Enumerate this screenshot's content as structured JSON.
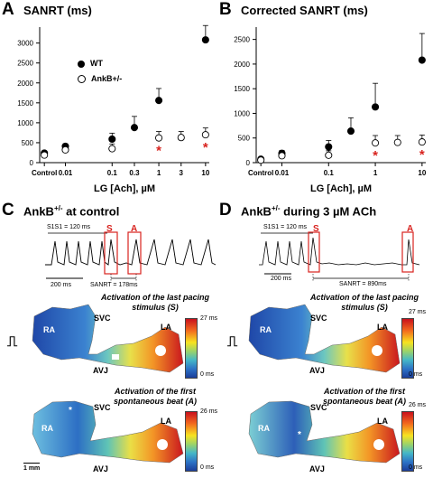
{
  "panel_a": {
    "label": "A",
    "title": "SANRT (ms)",
    "legend": {
      "wt": "WT",
      "ankb": "AnkB+/-"
    }
  },
  "panel_b": {
    "label": "B",
    "title": "Corrected SANRT (ms)"
  },
  "panel_c": {
    "label": "C",
    "title": "AnkB+/- at control",
    "s1s1": "S1S1 = 120 ms",
    "s_marker": "S",
    "a_marker": "A",
    "scale_time": "200 ms",
    "sanrt": "SANRT = 178ms",
    "map1_caption_1": "Activation of the last pacing",
    "map1_caption_2": "stimulus (S)",
    "map2_caption_1": "Activation of the first",
    "map2_caption_2": "spontaneous beat (A)",
    "map1_max": "27 ms",
    "map1_min": "0 ms",
    "map2_max": "26 ms",
    "map2_min": "0 ms",
    "scale_mm": "1 mm",
    "ra": "RA",
    "svc": "SVC",
    "la": "LA",
    "avj": "AVJ"
  },
  "panel_d": {
    "label": "D",
    "title": "AnkB+/- during 3 µM ACh",
    "s1s1": "S1S1 = 120 ms",
    "s_marker": "S",
    "a_marker": "A",
    "scale_time": "200 ms",
    "sanrt": "SANRT = 890ms",
    "map1_caption_1": "Activation of the last pacing",
    "map1_caption_2": "stimulus (S)",
    "map2_caption_1": "Activation of the first",
    "map2_caption_2": "spontaneous beat (A)",
    "map1_max": "27 ms",
    "map1_min": "0 ms",
    "map2_max": "26 ms",
    "map2_min": "0 ms",
    "ra": "RA",
    "svc": "SVC",
    "la": "LA",
    "avj": "AVJ"
  },
  "chart_data": [
    {
      "type": "scatter",
      "title": "SANRT (ms)",
      "xlabel": "LG [Ach], µM",
      "ylabel": "",
      "x_ticks": [
        "Control",
        "0.01",
        "0.1",
        "0.3",
        "1",
        "3",
        "10"
      ],
      "y_ticks": [
        0,
        500,
        1000,
        1500,
        2000,
        2500,
        3000
      ],
      "ylim": [
        0,
        3400
      ],
      "significance_marker": "*",
      "series": [
        {
          "name": "WT",
          "marker": "filled-circle",
          "points": [
            {
              "x": "Control",
              "y": 240,
              "err": 40
            },
            {
              "x": "0.01",
              "y": 410,
              "err": 60
            },
            {
              "x": "0.1",
              "y": 590,
              "err": 150
            },
            {
              "x": "0.3",
              "y": 880,
              "err": 280
            },
            {
              "x": "1",
              "y": 1560,
              "err": 300
            },
            {
              "x": "10",
              "y": 3080,
              "err": 360
            }
          ]
        },
        {
          "name": "AnkB+/-",
          "marker": "open-circle",
          "points": [
            {
              "x": "Control",
              "y": 190,
              "err": 50
            },
            {
              "x": "0.01",
              "y": 320,
              "err": 90
            },
            {
              "x": "0.1",
              "y": 350,
              "err": 120
            },
            {
              "x": "1",
              "y": 620,
              "err": 160,
              "sig": true
            },
            {
              "x": "3",
              "y": 630,
              "err": 150
            },
            {
              "x": "10",
              "y": 700,
              "err": 170,
              "sig": true
            }
          ]
        }
      ]
    },
    {
      "type": "scatter",
      "title": "Corrected SANRT (ms)",
      "xlabel": "LG [Ach], µM",
      "ylabel": "",
      "x_ticks": [
        "Control",
        "0.01",
        "0.1",
        "1",
        "10"
      ],
      "y_ticks": [
        0,
        500,
        1000,
        1500,
        2000,
        2500
      ],
      "ylim": [
        0,
        2750
      ],
      "significance_marker": "*",
      "series": [
        {
          "name": "WT",
          "marker": "filled-circle",
          "points": [
            {
              "x": "Control",
              "y": 70,
              "err": 30
            },
            {
              "x": "0.01",
              "y": 190,
              "err": 60
            },
            {
              "x": "0.1",
              "y": 320,
              "err": 130
            },
            {
              "x": "0.3",
              "y": 640,
              "err": 270
            },
            {
              "x": "1",
              "y": 1130,
              "err": 480
            },
            {
              "x": "10",
              "y": 2080,
              "err": 540
            }
          ]
        },
        {
          "name": "AnkB+/-",
          "marker": "open-circle",
          "points": [
            {
              "x": "Control",
              "y": 50,
              "err": 30
            },
            {
              "x": "0.01",
              "y": 140,
              "err": 60
            },
            {
              "x": "0.1",
              "y": 150,
              "err": 90
            },
            {
              "x": "1",
              "y": 400,
              "err": 150,
              "sig": true
            },
            {
              "x": "3",
              "y": 410,
              "err": 140
            },
            {
              "x": "10",
              "y": 420,
              "err": 140,
              "sig": true
            }
          ]
        }
      ]
    }
  ]
}
